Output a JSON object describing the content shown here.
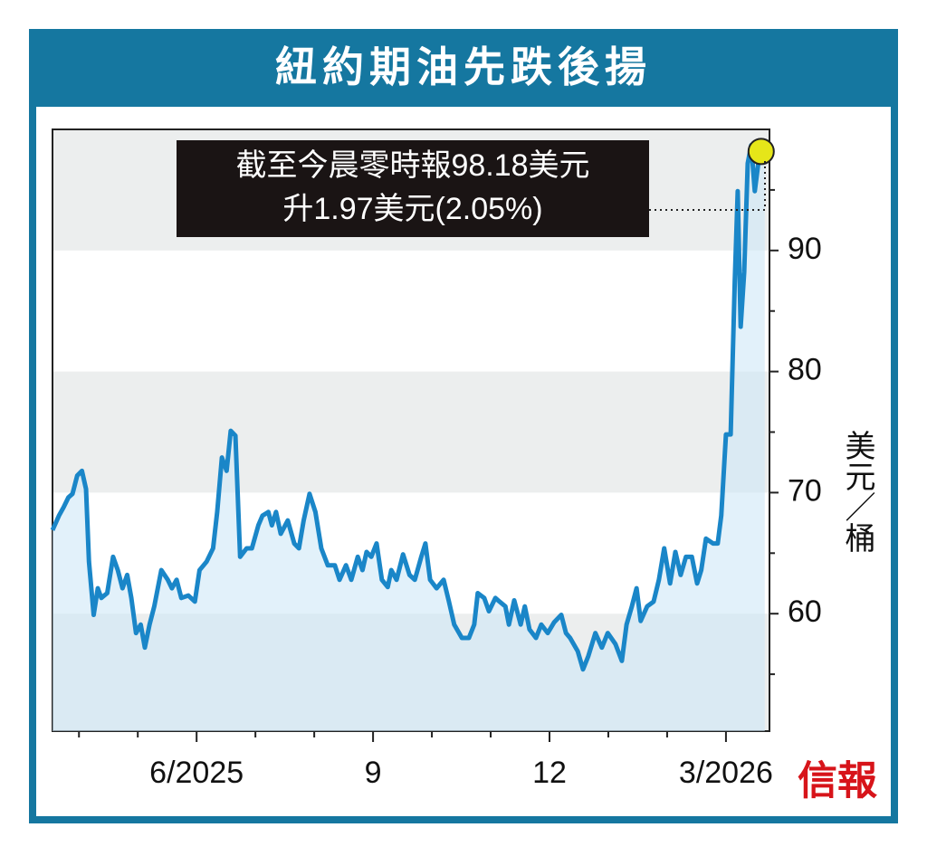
{
  "chart_data": {
    "type": "line",
    "title": "紐約期油先跌後揚",
    "y_label": "美元／桶",
    "brand": "信報",
    "annotations": [
      "截至今晨零時報98.18美元",
      "升1.97美元(2.05%)"
    ],
    "x": [
      3.55,
      3.66,
      3.74,
      3.82,
      3.89,
      3.97,
      4.05,
      4.12,
      4.17,
      4.25,
      4.32,
      4.38,
      4.48,
      4.58,
      4.66,
      4.74,
      4.82,
      4.89,
      4.97,
      5.05,
      5.12,
      5.2,
      5.28,
      5.4,
      5.51,
      5.58,
      5.66,
      5.74,
      5.86,
      5.97,
      6.05,
      6.17,
      6.28,
      6.35,
      6.43,
      6.51,
      6.58,
      6.66,
      6.74,
      6.85,
      6.94,
      7.05,
      7.12,
      7.22,
      7.28,
      7.35,
      7.43,
      7.55,
      7.66,
      7.74,
      7.82,
      7.92,
      8.02,
      8.12,
      8.23,
      8.35,
      8.43,
      8.54,
      8.63,
      8.74,
      8.82,
      8.89,
      8.97,
      9.06,
      9.15,
      9.25,
      9.31,
      9.4,
      9.51,
      9.62,
      9.71,
      9.82,
      9.89,
      9.97,
      10.08,
      10.2,
      10.29,
      10.38,
      10.51,
      10.63,
      10.72,
      10.78,
      10.89,
      10.97,
      11.08,
      11.15,
      11.25,
      11.31,
      11.4,
      11.51,
      11.58,
      11.66,
      11.77,
      11.86,
      11.97,
      12.08,
      12.2,
      12.28,
      12.35,
      12.48,
      12.57,
      12.66,
      12.78,
      12.89,
      12.99,
      13.12,
      13.23,
      13.31,
      13.4,
      13.48,
      13.55,
      13.66,
      13.77,
      13.86,
      13.95,
      14.05,
      14.14,
      14.23,
      14.32,
      14.42,
      14.51,
      14.58,
      14.66,
      14.78,
      14.86,
      14.92,
      15.0,
      15.08,
      15.15,
      15.2,
      15.25,
      15.31,
      15.37,
      15.43,
      15.49,
      15.55,
      15.63,
      15.66
    ],
    "series": [
      {
        "color": "#1a86c8",
        "values": [
          66.9,
          68.1,
          68.8,
          69.6,
          69.9,
          71.4,
          71.8,
          70.3,
          64.3,
          59.9,
          62.1,
          61.3,
          61.7,
          64.7,
          63.6,
          62.1,
          63.2,
          61.3,
          58.4,
          59.1,
          57.2,
          59.1,
          60.6,
          63.6,
          62.8,
          62.1,
          62.8,
          61.3,
          61.5,
          61.0,
          63.6,
          64.3,
          65.4,
          68.4,
          72.9,
          71.8,
          75.1,
          74.7,
          64.7,
          65.4,
          65.4,
          67.3,
          68.1,
          68.4,
          67.3,
          68.4,
          66.6,
          67.7,
          65.8,
          65.4,
          67.7,
          69.9,
          68.4,
          65.4,
          64.0,
          64.0,
          62.8,
          64.0,
          62.8,
          64.7,
          63.6,
          65.1,
          64.7,
          65.8,
          62.8,
          62.2,
          63.6,
          62.8,
          64.9,
          63.2,
          62.8,
          64.7,
          65.8,
          62.8,
          62.1,
          62.8,
          61.0,
          59.1,
          58.0,
          58.0,
          59.1,
          61.7,
          61.3,
          60.2,
          61.3,
          61.0,
          60.6,
          59.1,
          61.1,
          59.1,
          60.6,
          58.7,
          58.0,
          59.1,
          58.4,
          59.3,
          59.9,
          58.4,
          58.0,
          56.9,
          55.4,
          56.5,
          58.4,
          57.2,
          58.4,
          57.5,
          56.1,
          59.1,
          60.6,
          62.1,
          59.4,
          60.6,
          61.0,
          62.8,
          65.4,
          62.5,
          65.1,
          63.2,
          64.7,
          64.7,
          62.5,
          63.6,
          66.2,
          65.8,
          65.8,
          68.1,
          74.8,
          74.8,
          87.5,
          94.9,
          83.7,
          88.2,
          97.2,
          98.7,
          94.9,
          97.2,
          97.9,
          98.18
        ]
      }
    ],
    "xlim": [
      3.55,
      15.74
    ],
    "xticks": [
      {
        "value": 6,
        "label": "6/2025"
      },
      9,
      12,
      {
        "value": 15,
        "label": "3/2026"
      }
    ],
    "xminor": [
      4,
      5,
      7,
      8,
      10,
      11,
      13,
      14
    ],
    "ylim": [
      50.3,
      100
    ],
    "yticks": [
      60,
      70,
      80,
      90
    ],
    "yminor": [
      55,
      65,
      75,
      85,
      95
    ],
    "marker_color": "#e6e619"
  }
}
